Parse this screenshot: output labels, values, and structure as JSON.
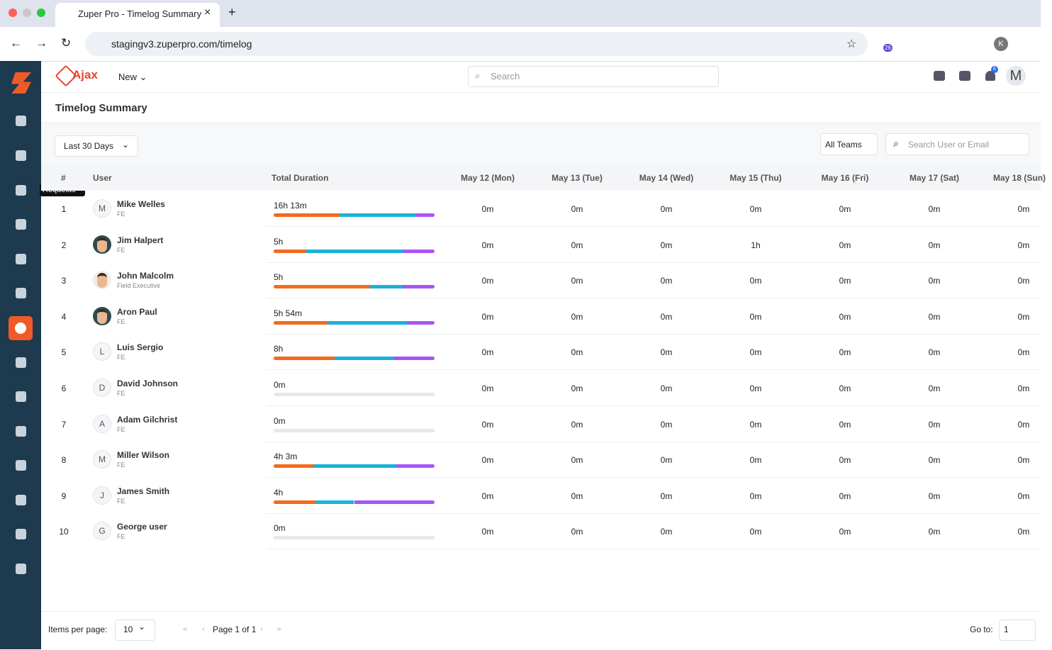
{
  "browser": {
    "tab_title": "Zuper Pro - Timelog Summary",
    "url": "stagingv3.zuperpro.com/timelog",
    "extension_badge": "26",
    "profile": "K"
  },
  "app": {
    "brand": "Ajax",
    "new_button": "New",
    "search_placeholder": "Search",
    "notification_count": "6",
    "avatar": "M",
    "sidebar_tooltip": "Requests"
  },
  "page": {
    "title": "Timelog Summary",
    "date_filter": "Last 30 Days",
    "team_filter": "All Teams",
    "user_search_placeholder": "Search User or Email"
  },
  "table": {
    "columns": [
      "#",
      "User",
      "Total Duration",
      "May 12 (Mon)",
      "May 13 (Tue)",
      "May 14 (Wed)",
      "May 15 (Thu)",
      "May 16 (Fri)",
      "May 17 (Sat)",
      "May 18 (Sun)"
    ],
    "breakdown_colors": [
      "#f26b1d",
      "#1ab3d6",
      "#a855f7"
    ],
    "rows": [
      {
        "index": 1,
        "name": "Mike Welles",
        "role": "FE",
        "initial": "M",
        "total": "16h 13m",
        "breakdown": [
          41,
          47,
          12
        ],
        "days": [
          "0m",
          "0m",
          "0m",
          "0m",
          "0m",
          "0m",
          "0m"
        ]
      },
      {
        "index": 2,
        "name": "Jim Halpert",
        "role": "FE",
        "total": "5h",
        "breakdown": [
          20,
          60,
          20
        ],
        "days": [
          "0m",
          "0m",
          "0m",
          "1h",
          "0m",
          "0m",
          "0m"
        ]
      },
      {
        "index": 3,
        "name": "John Malcolm",
        "role": "Field Executive",
        "total": "5h",
        "breakdown": [
          60,
          20,
          20
        ],
        "days": [
          "0m",
          "0m",
          "0m",
          "0m",
          "0m",
          "0m",
          "0m"
        ]
      },
      {
        "index": 4,
        "name": "Aron Paul",
        "role": "FE",
        "total": "5h 54m",
        "breakdown": [
          34,
          49,
          17
        ],
        "days": [
          "0m",
          "0m",
          "0m",
          "0m",
          "0m",
          "0m",
          "0m"
        ]
      },
      {
        "index": 5,
        "name": "Luis Sergio",
        "role": "FE",
        "initial": "L",
        "total": "8h",
        "breakdown": [
          38,
          37,
          25
        ],
        "days": [
          "0m",
          "0m",
          "0m",
          "0m",
          "0m",
          "0m",
          "0m"
        ]
      },
      {
        "index": 6,
        "name": "David Johnson",
        "role": "FE",
        "initial": "D",
        "total": "0m",
        "days": [
          "0m",
          "0m",
          "0m",
          "0m",
          "0m",
          "0m",
          "0m"
        ]
      },
      {
        "index": 7,
        "name": "Adam Gilchrist",
        "role": "FE",
        "initial": "A",
        "total": "0m",
        "days": [
          "0m",
          "0m",
          "0m",
          "0m",
          "0m",
          "0m",
          "0m"
        ]
      },
      {
        "index": 8,
        "name": "Miller Wilson",
        "role": "FE",
        "initial": "M",
        "total": "4h 3m",
        "breakdown": [
          25,
          51,
          24
        ],
        "days": [
          "0m",
          "0m",
          "0m",
          "0m",
          "0m",
          "0m",
          "0m"
        ]
      },
      {
        "index": 9,
        "name": "James Smith",
        "role": "FE",
        "initial": "J",
        "total": "4h",
        "breakdown": [
          26,
          24,
          50
        ],
        "days": [
          "0m",
          "0m",
          "0m",
          "0m",
          "0m",
          "0m",
          "0m"
        ]
      },
      {
        "index": 10,
        "name": "George user",
        "role": "FE",
        "initial": "G",
        "total": "0m",
        "days": [
          "0m",
          "0m",
          "0m",
          "0m",
          "0m",
          "0m",
          "0m"
        ]
      }
    ]
  },
  "pagination": {
    "items_per_page_label": "Items per page:",
    "per_page": "10",
    "page_info": "Page 1 of 1",
    "goto_label": "Go to:",
    "goto_value": "1"
  }
}
